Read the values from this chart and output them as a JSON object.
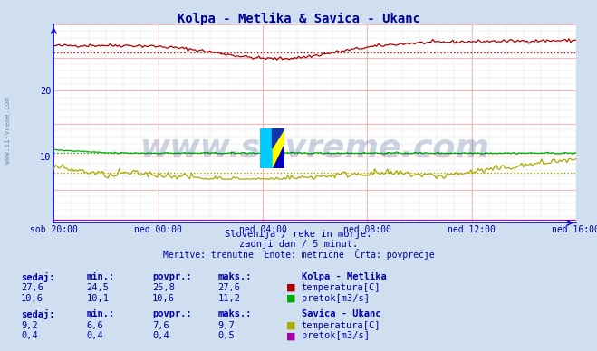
{
  "title": "Kolpa - Metlika & Savica - Ukanc",
  "title_color": "#000099",
  "title_fontsize": 10,
  "bg_color": "#d0dff0",
  "plot_bg_color": "#ffffff",
  "grid_color_major": "#ffaaaa",
  "grid_color_minor": "#e0e0e0",
  "axis_color": "#0000cc",
  "xlabel_color": "#0000aa",
  "ylabel_color": "#0000aa",
  "x_tick_labels": [
    "sob 20:00",
    "ned 00:00",
    "ned 04:00",
    "ned 08:00",
    "ned 12:00",
    "ned 16:00"
  ],
  "x_tick_positions": [
    0,
    48,
    96,
    144,
    192,
    240
  ],
  "n_points": 289,
  "ylim": [
    0,
    30
  ],
  "yticks": [
    10,
    20
  ],
  "watermark": "www.si-vreme.com",
  "watermark_color": "#1a3a7a",
  "watermark_alpha": 0.22,
  "watermark_fontsize": 26,
  "subtitle1": "Slovenija / reke in morje.",
  "subtitle2": "zadnji dan / 5 minut.",
  "subtitle3": "Meritve: trenutne  Enote: metrične  Črta: povprečje",
  "subtitle_color": "#0000aa",
  "sidebar_text": "www.si-vreme.com",
  "sidebar_color": "#7090b0",
  "kolpa_temp_color": "#aa0000",
  "kolpa_temp_avg": 25.8,
  "kolpa_temp_min": 24.5,
  "kolpa_temp_max": 27.6,
  "kolpa_temp_current": 27.6,
  "kolpa_pretok_color": "#00aa00",
  "kolpa_pretok_avg": 10.6,
  "kolpa_pretok_min": 10.1,
  "kolpa_pretok_max": 11.2,
  "kolpa_pretok_current": 10.6,
  "savica_temp_color": "#aaaa00",
  "savica_temp_avg": 7.6,
  "savica_temp_min": 6.6,
  "savica_temp_max": 9.7,
  "savica_temp_current": 9.2,
  "savica_pretok_color": "#aa00aa",
  "savica_pretok_avg": 0.4,
  "savica_pretok_min": 0.4,
  "savica_pretok_max": 0.5,
  "savica_pretok_current": 0.4,
  "legend_kolpa_label": "Kolpa - Metlika",
  "legend_savica_label": "Savica - Ukanc",
  "legend_temp_label": "temperatura[C]",
  "legend_pretok_label": "pretok[m3/s]",
  "table_header": [
    "sedaj:",
    "min.:",
    "povpr.:",
    "maks.:"
  ],
  "table_color": "#0000aa",
  "table_header_color": "#0000aa"
}
